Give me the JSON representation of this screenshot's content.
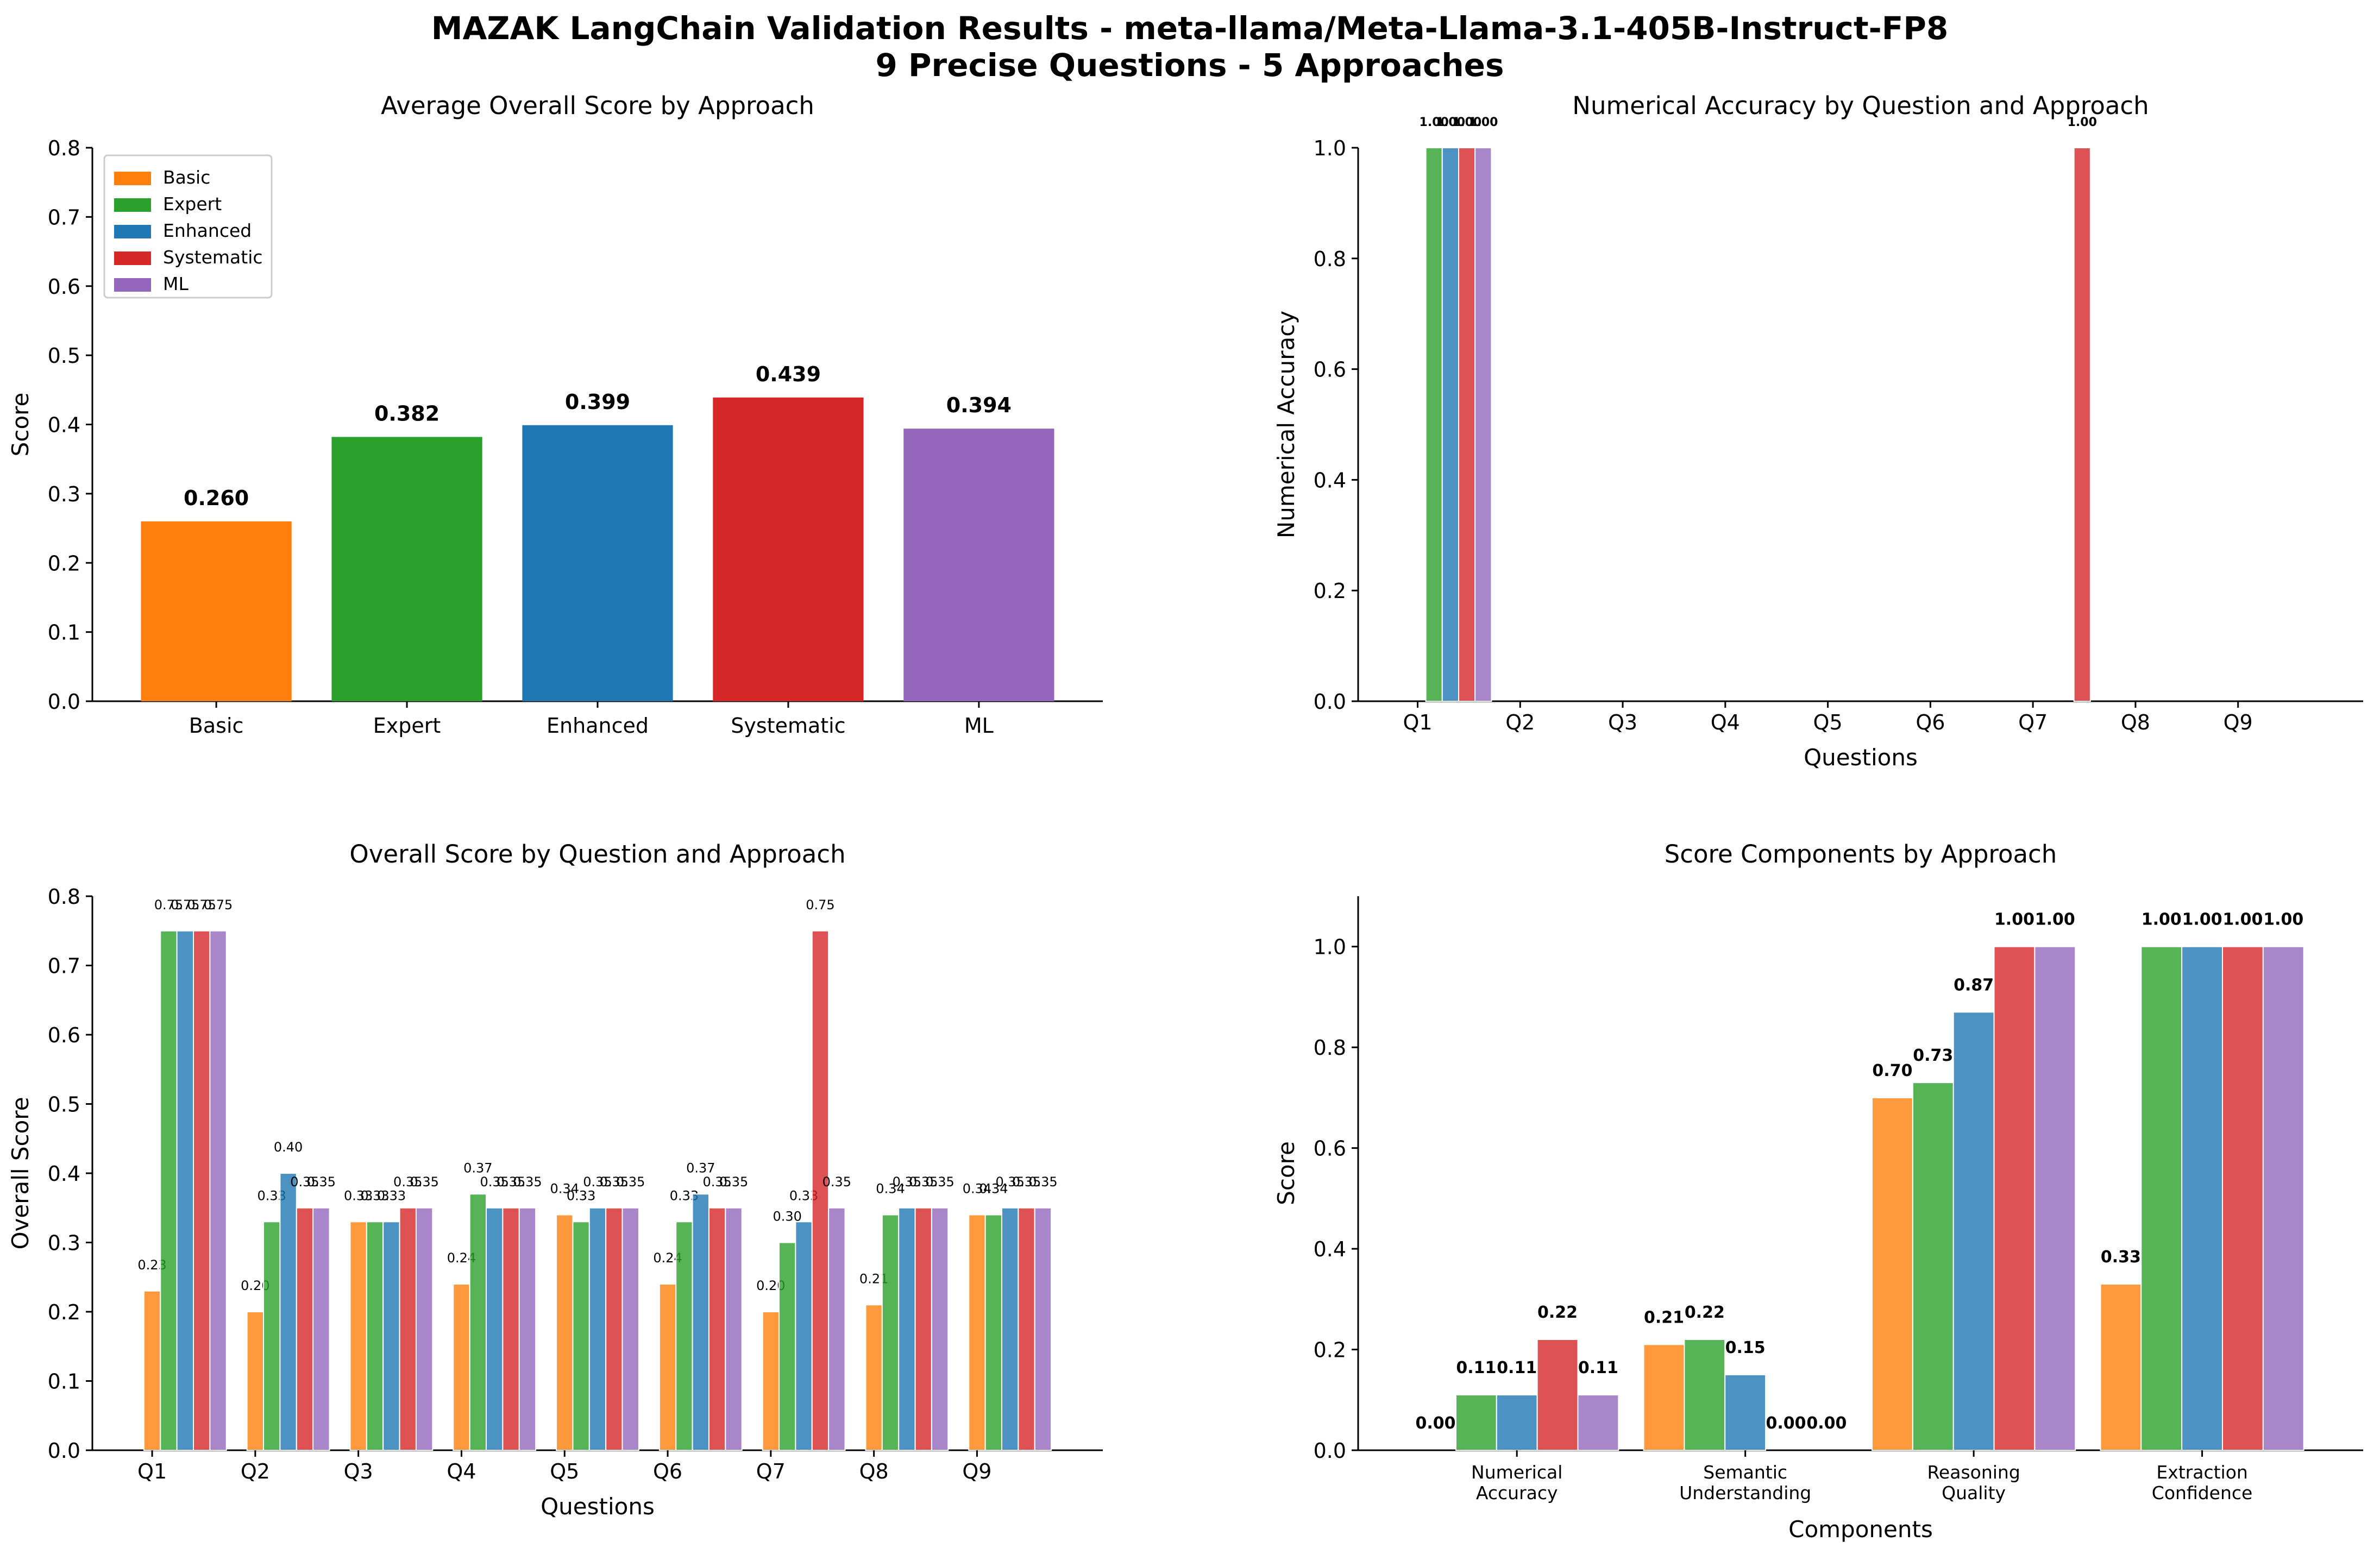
{
  "figure": {
    "title_line1": "MAZAK LangChain Validation Results - meta-llama/Meta-Llama-3.1-405B-Instruct-FP8",
    "title_line2": "9 Precise Questions - 5 Approaches"
  },
  "approaches": [
    "Basic",
    "Expert",
    "Enhanced",
    "Systematic",
    "ML"
  ],
  "colors": {
    "Basic": "#ff7f0e",
    "Expert": "#2ca02c",
    "Enhanced": "#1f77b4",
    "Systematic": "#d62728",
    "ML": "#9467bd"
  },
  "chart_data": [
    {
      "type": "bar",
      "title": "Average Overall Score by Approach",
      "xlabel": "",
      "ylabel": "Score",
      "categories": [
        "Basic",
        "Expert",
        "Enhanced",
        "Systematic",
        "ML"
      ],
      "values": [
        0.26,
        0.382,
        0.399,
        0.439,
        0.394
      ],
      "value_labels": [
        "0.260",
        "0.382",
        "0.399",
        "0.439",
        "0.394"
      ],
      "ylim": [
        0,
        0.8
      ],
      "yticks": [
        "0.0",
        "0.1",
        "0.2",
        "0.3",
        "0.4",
        "0.5",
        "0.6",
        "0.7",
        "0.8"
      ],
      "legend": [
        "Basic",
        "Expert",
        "Enhanced",
        "Systematic",
        "ML"
      ],
      "legend_position": "top-left"
    },
    {
      "type": "bar",
      "title": "Numerical Accuracy by Question and Approach",
      "xlabel": "Questions",
      "ylabel": "Numerical Accuracy",
      "categories": [
        "Q1",
        "Q2",
        "Q3",
        "Q4",
        "Q5",
        "Q6",
        "Q7",
        "Q8",
        "Q9"
      ],
      "series": [
        {
          "name": "Basic",
          "values": [
            0,
            0,
            0,
            0,
            0,
            0,
            0,
            0,
            0
          ]
        },
        {
          "name": "Expert",
          "values": [
            1,
            0,
            0,
            0,
            0,
            0,
            0,
            0,
            0
          ]
        },
        {
          "name": "Enhanced",
          "values": [
            1,
            0,
            0,
            0,
            0,
            0,
            0,
            0,
            0
          ]
        },
        {
          "name": "Systematic",
          "values": [
            1,
            0,
            0,
            0,
            0,
            0,
            1,
            0,
            0
          ]
        },
        {
          "name": "ML",
          "values": [
            1,
            0,
            0,
            0,
            0,
            0,
            0,
            0,
            0
          ]
        }
      ],
      "ylim": [
        0,
        1.0
      ],
      "yticks": [
        "0.0",
        "0.2",
        "0.4",
        "0.6",
        "0.8",
        "1.0"
      ],
      "label_format": "2"
    },
    {
      "type": "bar",
      "title": "Overall Score by Question and Approach",
      "xlabel": "Questions",
      "ylabel": "Overall Score",
      "categories": [
        "Q1",
        "Q2",
        "Q3",
        "Q4",
        "Q5",
        "Q6",
        "Q7",
        "Q8",
        "Q9"
      ],
      "series": [
        {
          "name": "Basic",
          "values": [
            0.23,
            0.2,
            0.33,
            0.24,
            0.34,
            0.24,
            0.2,
            0.21,
            0.34
          ]
        },
        {
          "name": "Expert",
          "values": [
            0.75,
            0.33,
            0.33,
            0.37,
            0.33,
            0.33,
            0.3,
            0.34,
            0.34
          ]
        },
        {
          "name": "Enhanced",
          "values": [
            0.75,
            0.4,
            0.33,
            0.35,
            0.35,
            0.37,
            0.33,
            0.35,
            0.35
          ]
        },
        {
          "name": "Systematic",
          "values": [
            0.75,
            0.35,
            0.35,
            0.35,
            0.35,
            0.35,
            0.75,
            0.35,
            0.35
          ]
        },
        {
          "name": "ML",
          "values": [
            0.75,
            0.35,
            0.35,
            0.35,
            0.35,
            0.35,
            0.35,
            0.35,
            0.35
          ]
        }
      ],
      "ylim": [
        0,
        0.8
      ],
      "yticks": [
        "0.0",
        "0.1",
        "0.2",
        "0.3",
        "0.4",
        "0.5",
        "0.6",
        "0.7",
        "0.8"
      ],
      "label_format": "2"
    },
    {
      "type": "bar",
      "title": "Score Components by Approach",
      "xlabel": "Components",
      "ylabel": "Score",
      "categories": [
        "Numerical\nAccuracy",
        "Semantic\nUnderstanding",
        "Reasoning\nQuality",
        "Extraction\nConfidence"
      ],
      "series": [
        {
          "name": "Basic",
          "values": [
            0.0,
            0.21,
            0.7,
            0.33
          ]
        },
        {
          "name": "Expert",
          "values": [
            0.11,
            0.22,
            0.73,
            1.0
          ]
        },
        {
          "name": "Enhanced",
          "values": [
            0.11,
            0.15,
            0.87,
            1.0
          ]
        },
        {
          "name": "Systematic",
          "values": [
            0.22,
            0.0,
            1.0,
            1.0
          ]
        },
        {
          "name": "ML",
          "values": [
            0.11,
            0.0,
            1.0,
            1.0
          ]
        }
      ],
      "ylim": [
        0,
        1.1
      ],
      "yticks": [
        "0.0",
        "0.2",
        "0.4",
        "0.6",
        "0.8",
        "1.0"
      ],
      "label_format": "2"
    }
  ]
}
